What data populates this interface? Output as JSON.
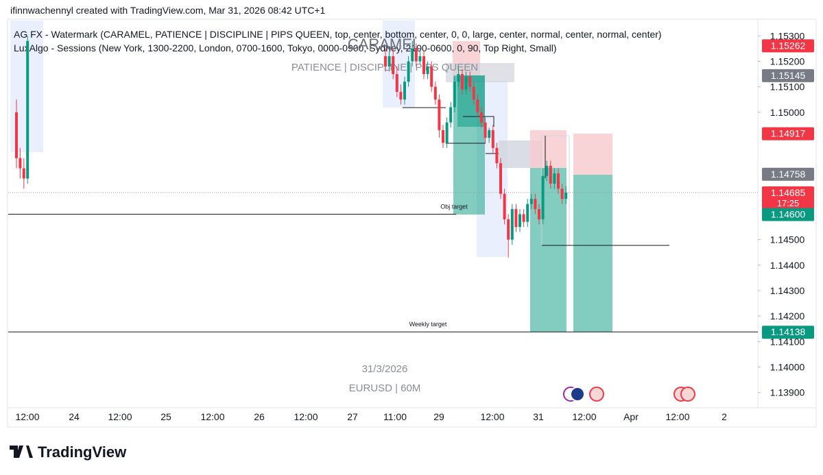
{
  "header": {
    "credit": "ifinnwachennyl created with TradingView.com, Mar 31, 2026 08:42 UTC+1",
    "indicators": [
      "AG FX - Watermark (CARAMEL, PATIENCE | DISCIPLINE | PIPS QUEEN, top, center, bottom, center, 0, 0, large, center, normal, center, normal, center)",
      "LuxAlgo - Sessions (New York, 1300-2200, London, 0700-1600, Tokyo, 0000-0900, Sydney, 2100-0600, 0, 90, Top Right, Small)"
    ]
  },
  "watermark": {
    "big": "CARAMEL",
    "small": "PATIENCE | DISCIPLINE | PIPS QUEEN",
    "date": "31/3/2026",
    "symbol": "EURUSD | 60M"
  },
  "logo": "TradingView",
  "chart_data": {
    "type": "candlestick",
    "up_color": "#089981",
    "down_color": "#f23645",
    "xtick_labels": [
      "12:00",
      "24",
      "12:00",
      "25",
      "12:00",
      "26",
      "12:00",
      "27",
      "11:00",
      "29",
      "12:00",
      "31",
      "12:00",
      "Apr",
      "12:00",
      "2"
    ],
    "ylim": [
      1.1384,
      1.1536
    ],
    "yticks": [
      {
        "value": 1.153,
        "label": "1.15300"
      },
      {
        "value": 1.152,
        "label": "1.15200"
      },
      {
        "value": 1.151,
        "label": "1.15100"
      },
      {
        "value": 1.15,
        "label": "1.15000"
      },
      {
        "value": 1.145,
        "label": "1.14500"
      },
      {
        "value": 1.144,
        "label": "1.14400"
      },
      {
        "value": 1.143,
        "label": "1.14300"
      },
      {
        "value": 1.142,
        "label": "1.14200"
      },
      {
        "value": 1.141,
        "label": "1.14100"
      },
      {
        "value": 1.14,
        "label": "1.14000"
      },
      {
        "value": 1.139,
        "label": "1.13900"
      }
    ],
    "early": {
      "open": [
        1.15,
        1.1482,
        1.1478,
        1.1474
      ],
      "high": [
        1.1505,
        1.1486,
        1.1482,
        1.153
      ],
      "low": [
        1.1478,
        1.1474,
        1.147,
        1.1472
      ],
      "close": [
        1.1482,
        1.1478,
        1.1474,
        1.1528
      ]
    },
    "open": [
      1.1522,
      1.1518,
      1.1522,
      1.1515,
      1.1508,
      1.1505,
      1.1512,
      1.152,
      1.1525,
      1.152,
      1.1522,
      1.1515,
      1.1518,
      1.151,
      1.1505,
      1.1493,
      1.1488,
      1.1496,
      1.1502,
      1.1512,
      1.1515,
      1.1509,
      1.1514,
      1.151,
      1.1505,
      1.15,
      1.1496,
      1.149,
      1.1493,
      1.1486,
      1.148,
      1.1468,
      1.1458,
      1.145,
      1.1462,
      1.1455,
      1.146,
      1.1457,
      1.1464,
      1.1466,
      1.1462,
      1.1458,
      1.1475,
      1.1479,
      1.1472,
      1.1476,
      1.147,
      1.1466
    ],
    "high": [
      1.1525,
      1.1524,
      1.1525,
      1.1518,
      1.1511,
      1.1514,
      1.1522,
      1.1528,
      1.1527,
      1.1524,
      1.1524,
      1.152,
      1.152,
      1.1512,
      1.1507,
      1.1495,
      1.1498,
      1.1504,
      1.1514,
      1.1518,
      1.1517,
      1.1516,
      1.1516,
      1.1512,
      1.1507,
      1.1502,
      1.1498,
      1.1494,
      1.1495,
      1.1488,
      1.1482,
      1.147,
      1.146,
      1.1464,
      1.1464,
      1.1462,
      1.1462,
      1.1466,
      1.1468,
      1.1468,
      1.1464,
      1.1478,
      1.1481,
      1.1481,
      1.1478,
      1.1478,
      1.1472,
      1.1471
    ],
    "low": [
      1.1516,
      1.1516,
      1.1513,
      1.1506,
      1.1503,
      1.1503,
      1.151,
      1.1518,
      1.1518,
      1.1519,
      1.1513,
      1.1513,
      1.1508,
      1.1503,
      1.149,
      1.1486,
      1.1486,
      1.1494,
      1.15,
      1.151,
      1.1507,
      1.1507,
      1.1508,
      1.1503,
      1.1498,
      1.1494,
      1.1488,
      1.1488,
      1.1484,
      1.1478,
      1.1466,
      1.1456,
      1.1443,
      1.1448,
      1.1453,
      1.1453,
      1.1455,
      1.1455,
      1.1462,
      1.146,
      1.1456,
      1.1456,
      1.1473,
      1.147,
      1.147,
      1.1468,
      1.1464,
      1.1464
    ],
    "close": [
      1.1518,
      1.1522,
      1.1515,
      1.1508,
      1.1505,
      1.1512,
      1.152,
      1.1525,
      1.152,
      1.1522,
      1.1515,
      1.1518,
      1.151,
      1.1505,
      1.1493,
      1.1488,
      1.1496,
      1.1502,
      1.1512,
      1.1515,
      1.1509,
      1.1514,
      1.151,
      1.1505,
      1.15,
      1.1496,
      1.149,
      1.1493,
      1.1486,
      1.148,
      1.1468,
      1.1458,
      1.145,
      1.1462,
      1.1455,
      1.146,
      1.1457,
      1.1464,
      1.1466,
      1.1462,
      1.1458,
      1.1475,
      1.1479,
      1.1472,
      1.1476,
      1.147,
      1.1466,
      1.14685
    ],
    "price_labels": [
      {
        "value": 1.15262,
        "label": "1.15262",
        "color": "#f23645"
      },
      {
        "value": 1.15145,
        "label": "1.15145",
        "color": "#787b86"
      },
      {
        "value": 1.14917,
        "label": "1.14917",
        "color": "#f23645"
      },
      {
        "value": 1.14758,
        "label": "1.14758",
        "color": "#787b86"
      },
      {
        "value": 1.14685,
        "label": "1.14685",
        "color": "#f23645"
      },
      {
        "value": 1.146,
        "label": "1.14600",
        "color": "#089981"
      },
      {
        "value": 1.14138,
        "label": "1.14138",
        "color": "#089981"
      }
    ],
    "countdown": "17:25",
    "levels": [
      {
        "value": 1.146,
        "label": "Obj target"
      },
      {
        "value": 1.14138,
        "label": "Weekly target"
      }
    ]
  }
}
